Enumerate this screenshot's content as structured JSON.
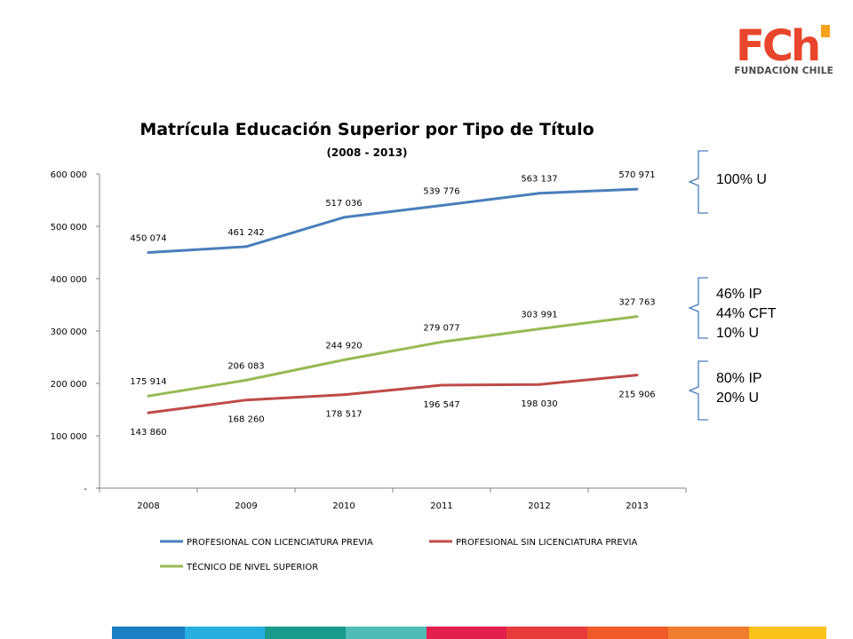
{
  "logo": {
    "mark_text": "FCh",
    "subtitle": "FUNDACIÓN CHILE",
    "color": "#e8452c",
    "accent_color": "#f7a21b"
  },
  "chart_data": {
    "type": "line",
    "title": "Matrícula Educación Superior por Tipo de Título",
    "subtitle": "(2008 - 2013)",
    "categories": [
      "2008",
      "2009",
      "2010",
      "2011",
      "2012",
      "2013"
    ],
    "ylim": [
      0,
      600000
    ],
    "ytick_values": [
      0,
      100000,
      200000,
      300000,
      400000,
      500000,
      600000
    ],
    "ytick_labels": [
      "-",
      "100 000",
      "200 000",
      "300 000",
      "400 000",
      "500 000",
      "600 000"
    ],
    "xlabel": "",
    "ylabel": "",
    "grid": false,
    "legend_position": "bottom",
    "series": [
      {
        "name": "PROFESIONAL CON LICENCIATURA PREVIA",
        "color": "#4a7ebb",
        "values": [
          450074,
          461242,
          517036,
          539776,
          563137,
          570971
        ],
        "labels": [
          "450 074",
          "461 242",
          "517 036",
          "539 776",
          "563 137",
          "570 971"
        ],
        "label_side": "above"
      },
      {
        "name": "PROFESIONAL SIN LICENCIATURA PREVIA",
        "color": "#be4b48",
        "values": [
          143860,
          168260,
          178517,
          196547,
          198030,
          215906
        ],
        "labels": [
          "143 860",
          "168 260",
          "178 517",
          "196 547",
          "198 030",
          "215 906"
        ],
        "label_side": "below"
      },
      {
        "name": "TÉCNICO DE NIVEL SUPERIOR",
        "color": "#98b954",
        "values": [
          175914,
          206083,
          244920,
          279077,
          303991,
          327763
        ],
        "labels": [
          "175 914",
          "206 083",
          "244 920",
          "279 077",
          "303 991",
          "327 763"
        ],
        "label_side": "above"
      }
    ]
  },
  "annotations": {
    "color": "#4a7ebb",
    "group1": [
      "100% U"
    ],
    "group2": [
      "46% IP",
      "44% CFT",
      "10% U"
    ],
    "group3": [
      "80% IP",
      "20% U"
    ]
  },
  "footer_bar": {
    "colors": [
      "#1b7fc4",
      "#27afe0",
      "#1a9a8a",
      "#4fbcb6",
      "#e2204e",
      "#e83b3b",
      "#ef5a28",
      "#f07c2e",
      "#f9c31b"
    ]
  }
}
